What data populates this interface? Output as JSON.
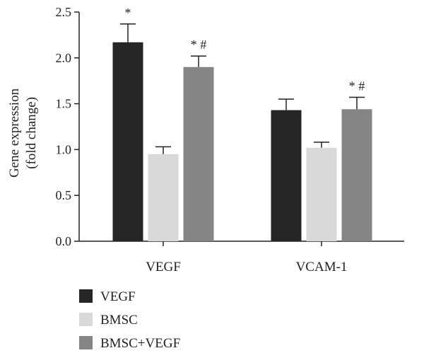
{
  "chart_data": {
    "type": "bar",
    "categories": [
      "VEGF",
      "VCAM-1"
    ],
    "ylabel": [
      "Gene expression",
      "(fold change)"
    ],
    "ylim": [
      0,
      2.5
    ],
    "yticks": [
      "0.0",
      "0.5",
      "1.0",
      "1.5",
      "2.0",
      "2.5"
    ],
    "grid": false,
    "legend_position": "bottom-left",
    "series": [
      {
        "name": "VEGF",
        "color": "#262626",
        "values": [
          2.17,
          1.43
        ],
        "errors": [
          0.2,
          0.12
        ],
        "annotations": [
          "*",
          ""
        ]
      },
      {
        "name": "BMSC",
        "color": "#d9d9d9",
        "values": [
          0.95,
          1.02
        ],
        "errors": [
          0.08,
          0.06
        ],
        "annotations": [
          "",
          ""
        ]
      },
      {
        "name": "BMSC+VEGF",
        "color": "#858585",
        "values": [
          1.9,
          1.44
        ],
        "errors": [
          0.12,
          0.13
        ],
        "annotations": [
          "* #",
          "* #"
        ]
      }
    ]
  }
}
